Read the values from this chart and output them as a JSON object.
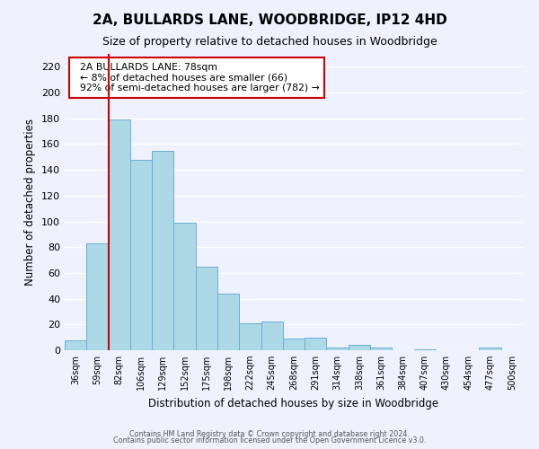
{
  "title": "2A, BULLARDS LANE, WOODBRIDGE, IP12 4HD",
  "subtitle": "Size of property relative to detached houses in Woodbridge",
  "xlabel": "Distribution of detached houses by size in Woodbridge",
  "ylabel": "Number of detached properties",
  "bar_labels": [
    "36sqm",
    "59sqm",
    "82sqm",
    "106sqm",
    "129sqm",
    "152sqm",
    "175sqm",
    "198sqm",
    "222sqm",
    "245sqm",
    "268sqm",
    "291sqm",
    "314sqm",
    "338sqm",
    "361sqm",
    "384sqm",
    "407sqm",
    "430sqm",
    "454sqm",
    "477sqm",
    "500sqm"
  ],
  "bar_values": [
    8,
    83,
    179,
    148,
    155,
    99,
    65,
    44,
    21,
    22,
    9,
    10,
    2,
    4,
    2,
    0,
    1,
    0,
    0,
    2,
    0
  ],
  "bar_color": "#add8e6",
  "bar_edge_color": "#6baed6",
  "ylim": [
    0,
    230
  ],
  "yticks": [
    0,
    20,
    40,
    60,
    80,
    100,
    120,
    140,
    160,
    180,
    200,
    220
  ],
  "property_line_x": 2,
  "property_line_color": "#cc0000",
  "annotation_title": "2A BULLARDS LANE: 78sqm",
  "annotation_line1": "← 8% of detached houses are smaller (66)",
  "annotation_line2": "92% of semi-detached houses are larger (782) →",
  "annotation_box_color": "#ffffff",
  "annotation_box_edge": "#cc0000",
  "footnote1": "Contains HM Land Registry data © Crown copyright and database right 2024.",
  "footnote2": "Contains public sector information licensed under the Open Government Licence v3.0.",
  "background_color": "#eef2ff",
  "grid_color": "#ffffff"
}
